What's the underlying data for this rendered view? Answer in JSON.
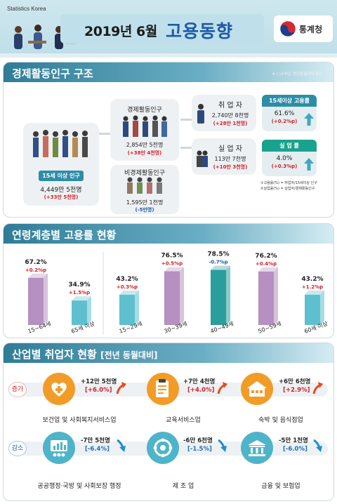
{
  "header": {
    "brand": "Statistics Korea",
    "year_month": "2019년 6월",
    "title": "고용동향",
    "agency": "통계청"
  },
  "section1": {
    "title": "경제활동인구 구조",
    "note": "※ (  )수치는 전년동월대비 증감",
    "pop15": {
      "label": "15세 이상 인구",
      "value": "4,449만 5천명",
      "change": "(+33만 5천명)"
    },
    "active": {
      "label": "경제활동인구",
      "value": "2,854만 5천명",
      "change": "(+38만 4천명)"
    },
    "inactive": {
      "label": "비경제활동인구",
      "value": "1,595만 1천명",
      "change": "(-5만명)"
    },
    "employed": {
      "label": "취 업 자",
      "value": "2,740만 8천명",
      "change": "(+28만 1천명)"
    },
    "unemployed": {
      "label": "실 업 자",
      "value": "113만 7천명",
      "change": "(+10만 3천명)"
    },
    "emp_rate": {
      "label": "15세이상 고용률",
      "value": "61.6%",
      "change": "(+0.2%p)"
    },
    "unemp_rate": {
      "label": "실 업 률",
      "value": "4.0%",
      "change": "(+0.3%p)"
    },
    "legend": [
      "①고용률(%) = 취업자/15세이상 인구",
      "②실업률(%) = 실업자/경제활동인구"
    ]
  },
  "section2": {
    "title": "연령계층별 고용률 현황"
  },
  "chart_data": {
    "type": "bar",
    "title": "연령계층별 고용률 현황",
    "categories": [
      "15~64세",
      "65세 이상",
      "15~29세",
      "30~39세",
      "40~49세",
      "50~59세",
      "60세 이상"
    ],
    "values": [
      67.2,
      34.9,
      43.2,
      76.5,
      78.5,
      76.2,
      43.2
    ],
    "value_labels": [
      "67.2%",
      "34.9%",
      "43.2%",
      "76.5%",
      "78.5%",
      "76.2%",
      "43.2%"
    ],
    "changes": [
      "+0.2%p",
      "+1.5%p",
      "+0.3%p",
      "+0.5%p",
      "-0.7%p",
      "+0.4%p",
      "+1.2%p"
    ],
    "bar_colors": [
      "#b690c0",
      "#5ec0cf",
      "#5ec0cf",
      "#b690c0",
      "#2a9e9a",
      "#b690c0",
      "#5ec0cf"
    ],
    "change_colors": [
      "#d6202a",
      "#d6202a",
      "#d6202a",
      "#d6202a",
      "#1d5aa8",
      "#d6202a",
      "#d6202a"
    ],
    "ylim": [
      0,
      100
    ]
  },
  "section3": {
    "title": "산업별 취업자 현황",
    "title_bracket": "[전년 동월대비]",
    "increase_tag": "증가",
    "decrease_tag": "감소",
    "industries": [
      {
        "name": "보건업 및 사회복지서비스업",
        "value": "+12만 5천명",
        "pct": "[+6.0%]",
        "trend": "up",
        "icon": "healthcare-icon"
      },
      {
        "name": "교육서비스업",
        "value": "+7만 4천명",
        "pct": "[+4.0%]",
        "trend": "up",
        "icon": "education-icon"
      },
      {
        "name": "숙박 및 음식점업",
        "value": "+6만 6천명",
        "pct": "[+2.9%]",
        "trend": "up",
        "icon": "lodging-icon"
      },
      {
        "name": "공공행정·국방 및 사회보장 행정",
        "value": "-7만 5천명",
        "pct": "[-6.4%]",
        "trend": "down",
        "icon": "public-admin-icon"
      },
      {
        "name": "제 조 업",
        "value": "-6만 6천명",
        "pct": "[-1.5%]",
        "trend": "down",
        "icon": "manufacturing-icon"
      },
      {
        "name": "금융 및 보험업",
        "value": "-5만 1천명",
        "pct": "[-6.0%]",
        "trend": "down",
        "icon": "finance-icon"
      }
    ]
  }
}
